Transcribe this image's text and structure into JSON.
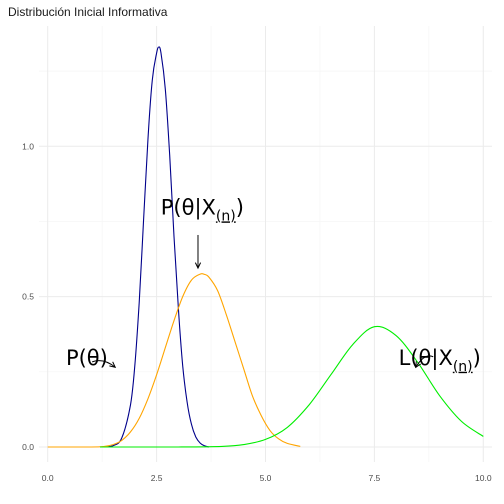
{
  "chart_data": {
    "type": "line",
    "title": "Distribución Inicial Informativa",
    "xlabel": "",
    "ylabel": "",
    "xlim": [
      -0.2,
      10.2
    ],
    "ylim": [
      -0.05,
      1.4
    ],
    "x_ticks": [
      0.0,
      2.5,
      5.0,
      7.5,
      10.0
    ],
    "x_tick_labels": [
      "0.0",
      "2.5",
      "5.0",
      "7.5",
      "10.0"
    ],
    "y_ticks": [
      0.0,
      0.5,
      1.0
    ],
    "y_tick_labels": [
      "0.0",
      "0.5",
      "1.0"
    ],
    "grid": true,
    "legend": "none",
    "series": [
      {
        "color": "#00008b",
        "x": [
          1.3,
          1.5,
          1.7,
          1.9,
          2.0,
          2.1,
          2.2,
          2.3,
          2.4,
          2.5,
          2.55,
          2.6,
          2.7,
          2.8,
          2.9,
          3.0,
          3.1,
          3.2,
          3.3,
          3.4,
          3.5,
          3.6,
          3.7
        ],
        "y": [
          0.0,
          0.004,
          0.03,
          0.14,
          0.27,
          0.48,
          0.75,
          1.02,
          1.22,
          1.31,
          1.33,
          1.31,
          1.19,
          0.97,
          0.7,
          0.46,
          0.27,
          0.15,
          0.075,
          0.033,
          0.013,
          0.004,
          0.0
        ]
      },
      {
        "color": "#ffa500",
        "x": [
          0.0,
          1.0,
          1.3,
          1.5,
          1.7,
          1.9,
          2.1,
          2.3,
          2.5,
          2.7,
          2.9,
          3.1,
          3.3,
          3.5,
          3.6,
          3.7,
          3.9,
          4.1,
          4.3,
          4.5,
          4.7,
          4.9,
          5.1,
          5.3,
          5.5,
          5.8
        ],
        "y": [
          0.0,
          0.0,
          0.002,
          0.008,
          0.022,
          0.05,
          0.095,
          0.16,
          0.24,
          0.33,
          0.42,
          0.5,
          0.555,
          0.575,
          0.574,
          0.565,
          0.52,
          0.44,
          0.35,
          0.26,
          0.17,
          0.105,
          0.055,
          0.027,
          0.012,
          0.002
        ]
      },
      {
        "color": "#00ee00",
        "x": [
          1.2,
          2.0,
          3.0,
          4.0,
          4.5,
          5.0,
          5.5,
          6.0,
          6.5,
          7.0,
          7.5,
          8.0,
          8.5,
          9.0,
          9.5,
          10.0
        ],
        "y": [
          0.0,
          0.0,
          0.0,
          0.002,
          0.008,
          0.025,
          0.065,
          0.14,
          0.24,
          0.34,
          0.4,
          0.37,
          0.28,
          0.17,
          0.085,
          0.035
        ]
      }
    ],
    "annotations": [
      {
        "label": "P(θ)",
        "sub": "",
        "tail": "",
        "x": 0.9,
        "y": 0.3
      },
      {
        "label": "P(θ|X",
        "sub": "(n)",
        "tail": ")",
        "x": 3.55,
        "y": 0.8
      },
      {
        "label": "L(θ|X",
        "sub": "(n)",
        "tail": ")",
        "x": 9.0,
        "y": 0.3
      }
    ],
    "arrows": [
      {
        "from": [
          1.02,
          0.283
        ],
        "to": [
          1.55,
          0.265
        ]
      },
      {
        "from": [
          3.45,
          0.705
        ],
        "to": [
          3.45,
          0.595
        ]
      },
      {
        "from": [
          8.85,
          0.3
        ],
        "to": [
          8.45,
          0.265
        ]
      }
    ]
  }
}
